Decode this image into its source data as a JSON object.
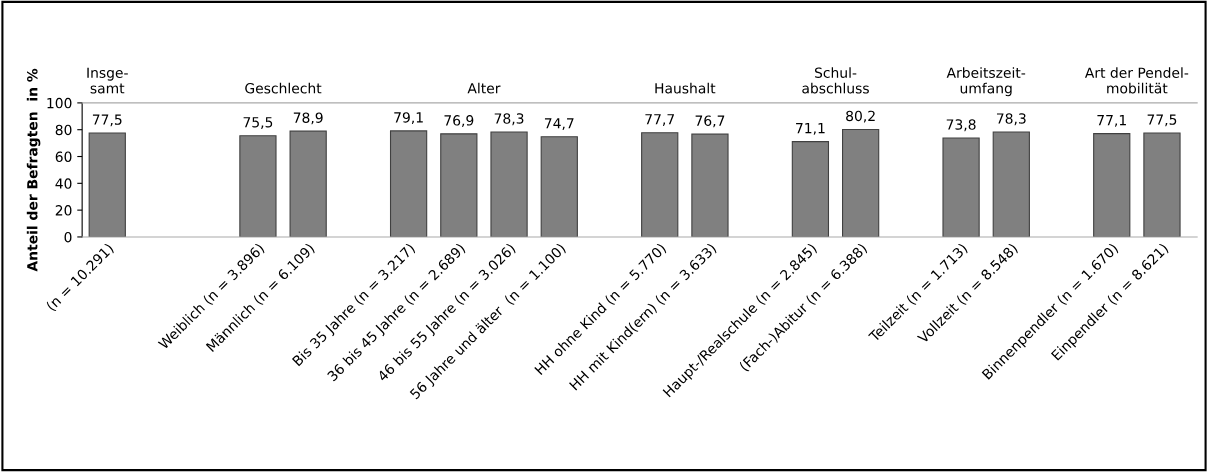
{
  "chart_data": {
    "type": "bar",
    "ylabel": "Anteil der Befragten  in %",
    "categories": [
      "(n = 10.291)",
      null,
      null,
      "Weiblich (n = 3.896)",
      "Männlich (n = 6.109)",
      null,
      "Bis 35 Jahre (n = 3.217)",
      "36 bis 45 Jahre (n = 2.689)",
      "46 bis 55 Jahre (n = 3.026)",
      "56 Jahre und älter  (n = 1.100)",
      null,
      "HH ohne Kind (n = 5.770)",
      "HH mit Kind(ern) (n = 3.633)",
      null,
      "Haupt-/Realschule (n = 2.845)",
      "(Fach-)Abitur (n = 6.388)",
      null,
      "Teilzeit (n = 1.713)",
      "Vollzeit (n = 8.548)",
      null,
      "Binnenpendler (n = 1.670)",
      "Einpendler (n = 8.621)"
    ],
    "values": [
      77.5,
      null,
      null,
      75.5,
      78.9,
      null,
      79.1,
      76.9,
      78.3,
      74.7,
      null,
      77.7,
      76.7,
      null,
      71.1,
      80.2,
      null,
      73.8,
      78.3,
      null,
      77.1,
      77.5
    ],
    "value_labels": [
      "77,5",
      null,
      null,
      "75,5",
      "78,9",
      null,
      "79,1",
      "76,9",
      "78,3",
      "74,7",
      null,
      "77,7",
      "76,7",
      null,
      "71,1",
      "80,2",
      null,
      "73,8",
      "78,3",
      null,
      "77,1",
      "77,5"
    ],
    "color": "#808080",
    "annotations": [
      "Insge-\nsamt",
      "Geschlecht",
      "Alter",
      "Haushalt",
      "Schul-\nabschluss",
      "Arbeitszeit-\numfang",
      "Art der Pendel-\nmobilität"
    ],
    "ylim": [
      0,
      100
    ],
    "yticks": [
      0,
      20,
      40,
      60,
      80,
      100
    ],
    "grid": false,
    "legend": false
  }
}
